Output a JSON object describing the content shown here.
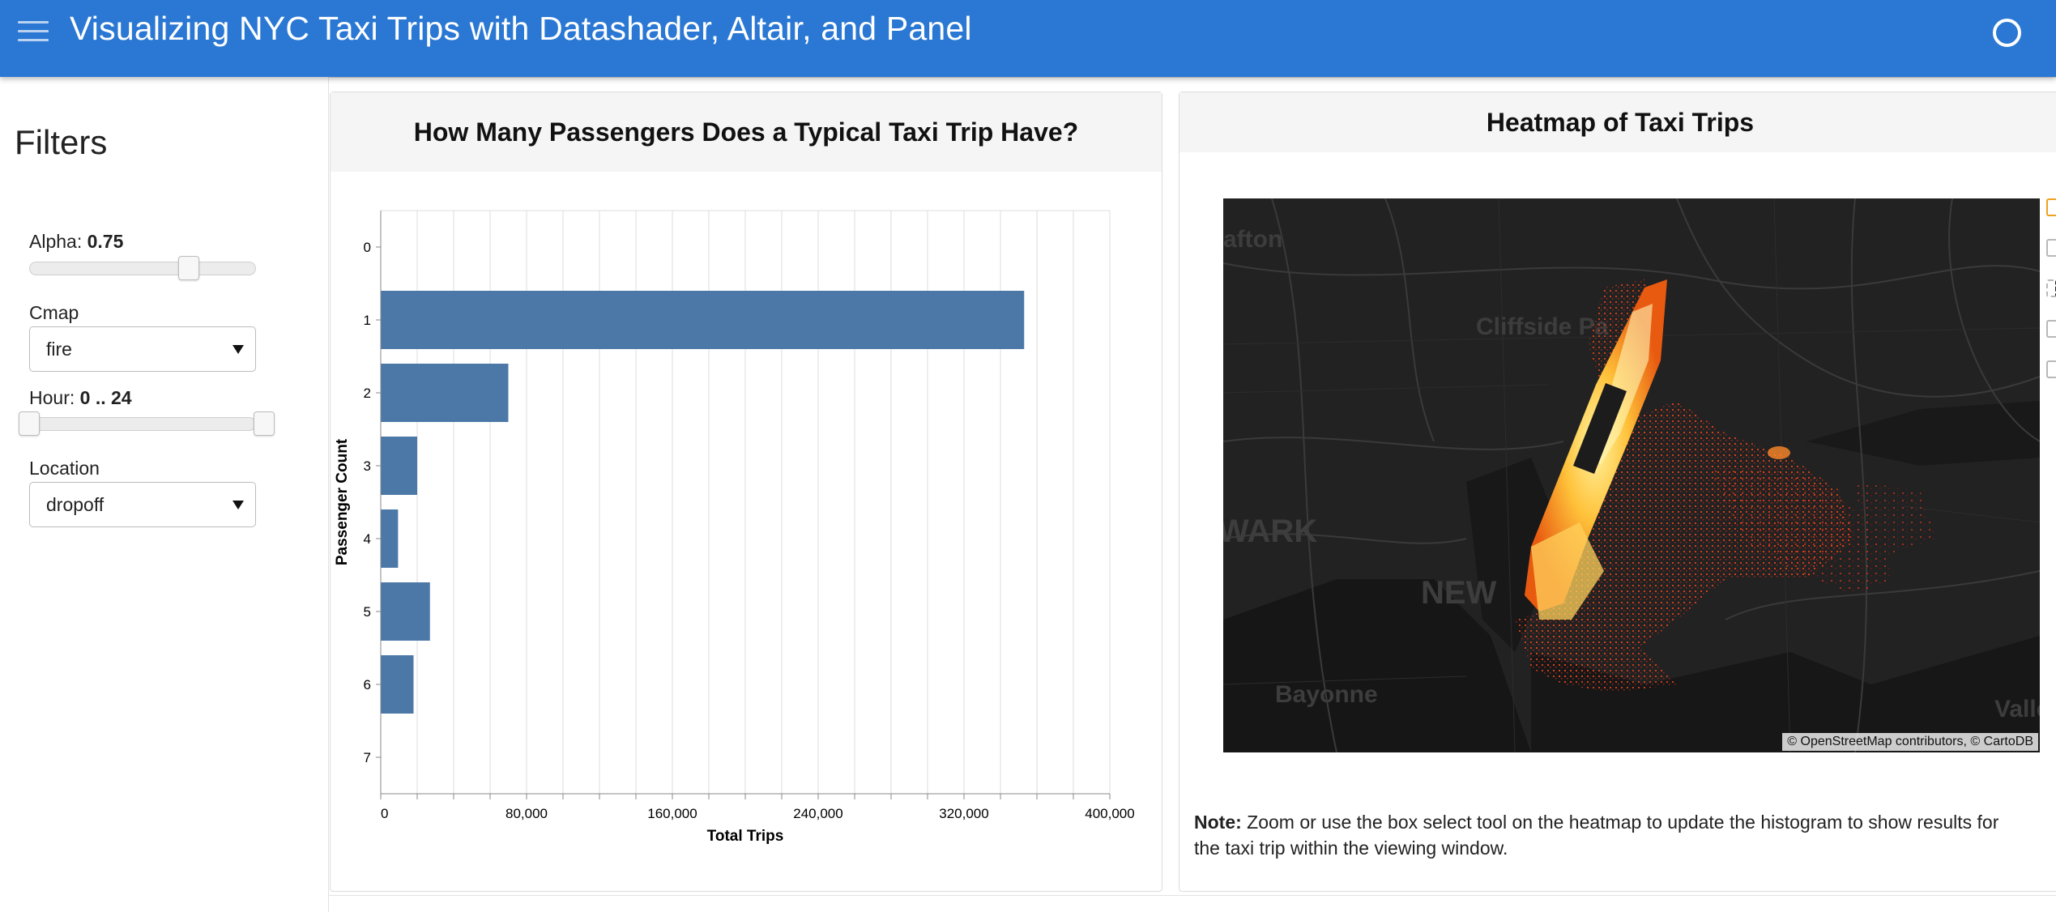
{
  "header": {
    "title": "Visualizing NYC Taxi Trips with Datashader, Altair, and Panel",
    "menu_icon": "hamburger-menu-icon",
    "status_icon": "busy-indicator-icon"
  },
  "sidebar": {
    "title": "Filters",
    "alpha": {
      "label": "Alpha: ",
      "value": "0.75",
      "fraction": 0.75
    },
    "cmap": {
      "label": "Cmap",
      "selected": "fire"
    },
    "hour": {
      "label": "Hour: ",
      "value": "0 .. 24",
      "start": 0,
      "end": 24,
      "min": 0,
      "max": 24
    },
    "location": {
      "label": "Location",
      "selected": "dropoff"
    }
  },
  "histogram": {
    "title": "How Many Passengers Does a Typical Taxi Trip Have?"
  },
  "heatmap": {
    "title": "Heatmap of Taxi Trips",
    "attribution_prefix": "© ",
    "attribution_osm": "OpenStreetMap",
    "attribution_rest": " contributors, © ",
    "attribution_carto": "CartoDB",
    "map_labels": [
      "afton",
      "Cliffside Pa",
      "WARK",
      "NEW",
      "Bayonne",
      "Valle"
    ],
    "note_bold": "Note:",
    "note_text": " Zoom or use the box select tool on the heatmap to update the histogram to show results for the taxi trip within the viewing window."
  },
  "chart_data": {
    "type": "bar",
    "orientation": "horizontal",
    "title": "How Many Passengers Does a Typical Taxi Trip Have?",
    "xlabel": "Total Trips",
    "ylabel": "Passenger Count",
    "categories": [
      "0",
      "1",
      "2",
      "3",
      "4",
      "5",
      "6",
      "7"
    ],
    "values": [
      0,
      353000,
      70000,
      20000,
      9500,
      27000,
      18000,
      0
    ],
    "xlim": [
      0,
      400000
    ],
    "x_ticks": [
      0,
      80000,
      160000,
      240000,
      320000,
      400000
    ],
    "x_tick_labels": [
      "0",
      "80,000",
      "160,000",
      "240,000",
      "320,000",
      "400,000"
    ],
    "grid_step": 20000,
    "bar_color": "#4c78a8",
    "grid": true
  }
}
